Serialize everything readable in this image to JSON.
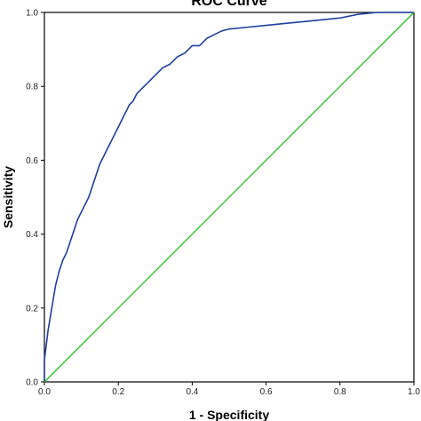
{
  "chart_data": {
    "type": "line",
    "title": "ROC Curve",
    "xlabel": "1 - Specificity",
    "ylabel": "Sensitivity",
    "xlim": [
      0,
      1
    ],
    "ylim": [
      0,
      1
    ],
    "x_ticks": [
      "0.0",
      "0.2",
      "0.4",
      "0.6",
      "0.8",
      "1.0"
    ],
    "y_ticks": [
      "0.0",
      "0.2",
      "0.4",
      "0.6",
      "0.8",
      "1.0"
    ],
    "grid": false,
    "legend": "none",
    "series": [
      {
        "color": "#1f3fa0",
        "x": [
          0.0,
          0.0,
          0.005,
          0.01,
          0.015,
          0.02,
          0.03,
          0.04,
          0.05,
          0.06,
          0.07,
          0.08,
          0.09,
          0.1,
          0.11,
          0.12,
          0.13,
          0.14,
          0.15,
          0.16,
          0.17,
          0.18,
          0.19,
          0.2,
          0.21,
          0.22,
          0.23,
          0.24,
          0.25,
          0.26,
          0.27,
          0.28,
          0.29,
          0.3,
          0.32,
          0.34,
          0.36,
          0.38,
          0.4,
          0.42,
          0.44,
          0.46,
          0.48,
          0.5,
          0.55,
          0.6,
          0.65,
          0.7,
          0.75,
          0.8,
          0.85,
          0.9,
          1.0
        ],
        "y": [
          0.0,
          0.06,
          0.1,
          0.14,
          0.17,
          0.2,
          0.26,
          0.3,
          0.33,
          0.35,
          0.38,
          0.41,
          0.44,
          0.46,
          0.48,
          0.5,
          0.53,
          0.56,
          0.59,
          0.61,
          0.63,
          0.65,
          0.67,
          0.69,
          0.71,
          0.73,
          0.75,
          0.76,
          0.78,
          0.79,
          0.8,
          0.81,
          0.82,
          0.83,
          0.85,
          0.86,
          0.88,
          0.89,
          0.91,
          0.91,
          0.93,
          0.94,
          0.95,
          0.955,
          0.96,
          0.965,
          0.97,
          0.975,
          0.98,
          0.985,
          0.995,
          1.0,
          1.0
        ]
      },
      {
        "color": "#22bb22",
        "x": [
          0.0,
          1.0
        ],
        "y": [
          0.0,
          1.0
        ]
      }
    ]
  },
  "colors": {
    "roc_curve": "#1f3fa0",
    "reference_line": "#22bb22",
    "axes": "#000000"
  }
}
